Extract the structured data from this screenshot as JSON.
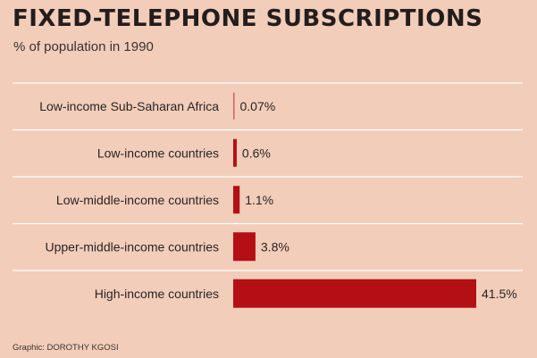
{
  "title": "FIXED-TELEPHONE SUBSCRIPTIONS",
  "subtitle": "% of population in 1990",
  "footer": "Graphic: DOROTHY KGOSI",
  "colors": {
    "background": "#f2cdb9",
    "bar": "#b30f14",
    "text": "#2a2424",
    "rule": "#ffffff"
  },
  "chart_data": {
    "type": "bar",
    "orientation": "horizontal",
    "categories": [
      "Low-income Sub-Saharan Africa",
      "Low-income countries",
      "Low-middle-income countries",
      "Upper-middle-income countries",
      "High-income countries"
    ],
    "values": [
      0.07,
      0.6,
      1.1,
      3.8,
      41.5
    ],
    "value_labels": [
      "0.07%",
      "0.6%",
      "1.1%",
      "3.8%",
      "41.5%"
    ],
    "xlim": [
      0,
      41.5
    ],
    "grid": false,
    "legend": "none"
  }
}
